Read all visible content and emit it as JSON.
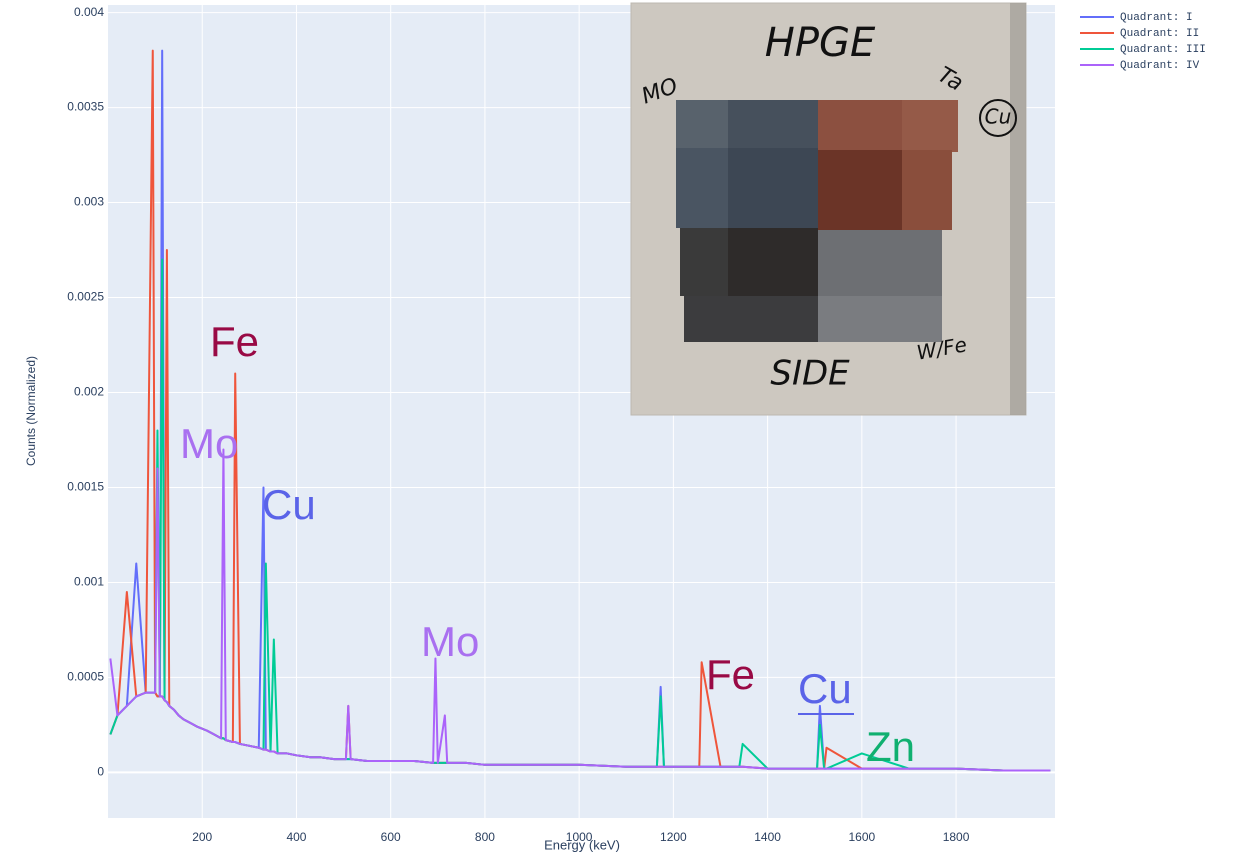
{
  "chart_data": {
    "type": "line",
    "x_label": "Energy (keV)",
    "y_label": "Counts (Normalized)",
    "xlim": [
      0,
      2010
    ],
    "ylim": [
      -0.00024,
      0.00404
    ],
    "xticks": [
      200,
      400,
      600,
      800,
      1000,
      1200,
      1400,
      1600,
      1800
    ],
    "yticks": [
      0,
      0.0005,
      0.001,
      0.0015,
      0.002,
      0.0025,
      0.003,
      0.0035,
      0.004
    ],
    "grid": true,
    "legend": "outside-right",
    "x": [
      5,
      20,
      40,
      60,
      80,
      95,
      100,
      105,
      110,
      115,
      120,
      125,
      130,
      140,
      150,
      160,
      175,
      190,
      210,
      225,
      240,
      245,
      250,
      265,
      270,
      280,
      300,
      320,
      330,
      335,
      345,
      352,
      360,
      380,
      400,
      430,
      450,
      480,
      505,
      510,
      515,
      550,
      600,
      650,
      690,
      695,
      700,
      715,
      720,
      760,
      800,
      900,
      1000,
      1100,
      1165,
      1173,
      1180,
      1250,
      1255,
      1260,
      1300,
      1333,
      1340,
      1347,
      1400,
      1460,
      1505,
      1511,
      1520,
      1525,
      1600,
      1700,
      1800,
      1900,
      2000
    ],
    "series": [
      {
        "name": "Quadrant: I",
        "color": "#636efa",
        "values": [
          0.0002,
          0.0003,
          0.00035,
          0.0011,
          0.00042,
          0.00042,
          0.00042,
          0.0004,
          0.0004,
          0.0038,
          0.00038,
          0.00037,
          0.00035,
          0.00033,
          0.0003,
          0.00028,
          0.00026,
          0.00024,
          0.00022,
          0.0002,
          0.00018,
          0.00018,
          0.00017,
          0.00016,
          0.00016,
          0.00015,
          0.00014,
          0.00013,
          0.0015,
          0.00012,
          0.00011,
          0.00011,
          0.0001,
          0.0001,
          9e-05,
          8e-05,
          8e-05,
          7e-05,
          7e-05,
          7e-05,
          7e-05,
          6e-05,
          6e-05,
          6e-05,
          5e-05,
          5e-05,
          5e-05,
          5e-05,
          5e-05,
          5e-05,
          4e-05,
          4e-05,
          4e-05,
          3e-05,
          3e-05,
          0.00045,
          3e-05,
          3e-05,
          3e-05,
          3e-05,
          3e-05,
          3e-05,
          3e-05,
          3e-05,
          2e-05,
          2e-05,
          2e-05,
          0.00035,
          2e-05,
          2e-05,
          2e-05,
          2e-05,
          2e-05,
          1e-05,
          1e-05
        ]
      },
      {
        "name": "Quadrant: II",
        "color": "#ef553b",
        "values": [
          0.0002,
          0.0003,
          0.00095,
          0.0004,
          0.00042,
          0.0038,
          0.00042,
          0.0004,
          0.0004,
          0.0004,
          0.00038,
          0.00275,
          0.00035,
          0.00033,
          0.0003,
          0.00028,
          0.00026,
          0.00024,
          0.00022,
          0.0002,
          0.00018,
          0.00018,
          0.00017,
          0.00016,
          0.0021,
          0.00015,
          0.00014,
          0.00013,
          0.00012,
          0.00012,
          0.00011,
          0.00011,
          0.0001,
          0.0001,
          9e-05,
          8e-05,
          8e-05,
          7e-05,
          7e-05,
          0.00035,
          7e-05,
          6e-05,
          6e-05,
          6e-05,
          5e-05,
          5e-05,
          5e-05,
          5e-05,
          5e-05,
          5e-05,
          4e-05,
          4e-05,
          4e-05,
          3e-05,
          3e-05,
          3e-05,
          3e-05,
          3e-05,
          3e-05,
          0.00058,
          3e-05,
          3e-05,
          3e-05,
          3e-05,
          2e-05,
          2e-05,
          2e-05,
          2e-05,
          2e-05,
          0.00013,
          2e-05,
          2e-05,
          2e-05,
          1e-05,
          1e-05
        ]
      },
      {
        "name": "Quadrant: III",
        "color": "#00cc96",
        "values": [
          0.0002,
          0.0003,
          0.00035,
          0.0004,
          0.00042,
          0.00042,
          0.00042,
          0.0018,
          0.0004,
          0.0027,
          0.00038,
          0.00037,
          0.00035,
          0.00033,
          0.0003,
          0.00028,
          0.00026,
          0.00024,
          0.00022,
          0.0002,
          0.00018,
          0.00018,
          0.00017,
          0.00016,
          0.00016,
          0.00015,
          0.00014,
          0.00013,
          0.00012,
          0.0011,
          0.00011,
          0.0007,
          0.0001,
          0.0001,
          9e-05,
          8e-05,
          8e-05,
          7e-05,
          7e-05,
          7e-05,
          7e-05,
          6e-05,
          6e-05,
          6e-05,
          5e-05,
          5e-05,
          5e-05,
          5e-05,
          5e-05,
          5e-05,
          4e-05,
          4e-05,
          4e-05,
          3e-05,
          3e-05,
          0.0004,
          3e-05,
          3e-05,
          3e-05,
          3e-05,
          3e-05,
          3e-05,
          3e-05,
          0.00015,
          2e-05,
          2e-05,
          2e-05,
          0.00025,
          2e-05,
          2e-05,
          0.0001,
          2e-05,
          2e-05,
          1e-05,
          1e-05
        ]
      },
      {
        "name": "Quadrant: IV",
        "color": "#ab63fa",
        "values": [
          0.0006,
          0.0003,
          0.00035,
          0.0004,
          0.00042,
          0.00042,
          0.00042,
          0.0016,
          0.0004,
          0.0004,
          0.00038,
          0.00037,
          0.00035,
          0.00033,
          0.0003,
          0.00028,
          0.00026,
          0.00024,
          0.00022,
          0.0002,
          0.00018,
          0.0017,
          0.00017,
          0.00016,
          0.00016,
          0.00015,
          0.00014,
          0.00013,
          0.00012,
          0.00012,
          0.00011,
          0.00011,
          0.0001,
          0.0001,
          9e-05,
          8e-05,
          8e-05,
          7e-05,
          7e-05,
          0.00035,
          7e-05,
          6e-05,
          6e-05,
          6e-05,
          5e-05,
          0.0006,
          5e-05,
          0.0003,
          5e-05,
          5e-05,
          4e-05,
          4e-05,
          4e-05,
          3e-05,
          3e-05,
          3e-05,
          3e-05,
          3e-05,
          3e-05,
          3e-05,
          3e-05,
          3e-05,
          3e-05,
          3e-05,
          2e-05,
          2e-05,
          2e-05,
          2e-05,
          2e-05,
          2e-05,
          2e-05,
          2e-05,
          2e-05,
          1e-05,
          1e-05
        ]
      }
    ],
    "annotations": [
      {
        "text": "Fe",
        "color": "#990a45"
      },
      {
        "text": "Mo",
        "color": "#a970f0"
      },
      {
        "text": "Cu",
        "color": "#5a63e8"
      },
      {
        "text": "Mo",
        "color": "#a970f0"
      },
      {
        "text": "Fe",
        "color": "#990a45"
      },
      {
        "text": "Cu",
        "color": "#5a63e8",
        "underline": true
      },
      {
        "text": "Zn",
        "color": "#10b070"
      }
    ],
    "photo_labels": [
      "HPGE",
      "MO",
      "Ta",
      "Cu",
      "SIDE",
      "W/Fe"
    ]
  }
}
